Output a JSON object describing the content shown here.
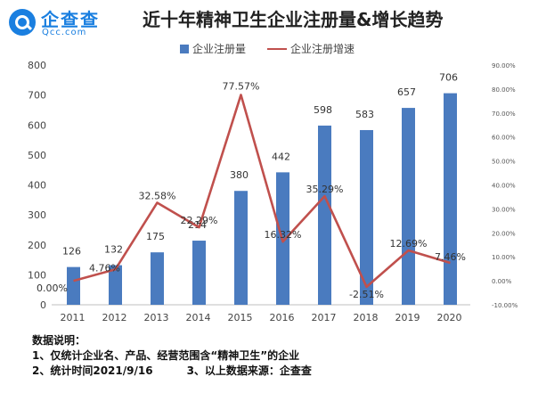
{
  "logo": {
    "name": "企查查",
    "domain": "Qcc.com"
  },
  "title": "近十年精神卫生企业注册量&增长趋势",
  "notes": {
    "heading": "数据说明：",
    "line1": "1、仅统计企业名、产品、经营范围含“精神卫生”的企业",
    "line2a": "2、统计时间2021/9/16",
    "line2b": "3、以上数据来源：企查查"
  },
  "colors": {
    "bar": "#4a7bbf",
    "line": "#c0504d",
    "brand": "#1a7fe0"
  },
  "chart_data": {
    "type": "bar",
    "categories": [
      "2011",
      "2012",
      "2013",
      "2014",
      "2015",
      "2016",
      "2017",
      "2018",
      "2019",
      "2020"
    ],
    "series": [
      {
        "name": "企业注册量",
        "type": "bar",
        "axis": "left",
        "values": [
          126,
          132,
          175,
          214,
          380,
          442,
          598,
          583,
          657,
          706
        ],
        "labels": [
          "126",
          "132",
          "175",
          "214",
          "380",
          "442",
          "598",
          "583",
          "657",
          "706"
        ]
      },
      {
        "name": "企业注册增速",
        "type": "line",
        "axis": "right",
        "values": [
          0.0,
          4.76,
          32.58,
          22.29,
          77.57,
          16.32,
          35.29,
          -2.51,
          12.69,
          7.46
        ],
        "labels": [
          "0.00%",
          "4.76%",
          "32.58%",
          "22.29%",
          "77.57%",
          "16.32%",
          "35.29%",
          "-2.51%",
          "12.69%",
          "7.46%"
        ]
      }
    ],
    "yleft": {
      "ylim": [
        0,
        800
      ],
      "ticks": [
        "0",
        "100",
        "200",
        "300",
        "400",
        "500",
        "600",
        "700",
        "800"
      ]
    },
    "yright": {
      "ylim": [
        -10,
        90
      ],
      "ticks": [
        "-10.00%",
        "0.00%",
        "10.00%",
        "20.00%",
        "30.00%",
        "40.00%",
        "50.00%",
        "60.00%",
        "70.00%",
        "80.00%",
        "90.00%"
      ]
    },
    "legend": "top-center",
    "grid": false
  }
}
